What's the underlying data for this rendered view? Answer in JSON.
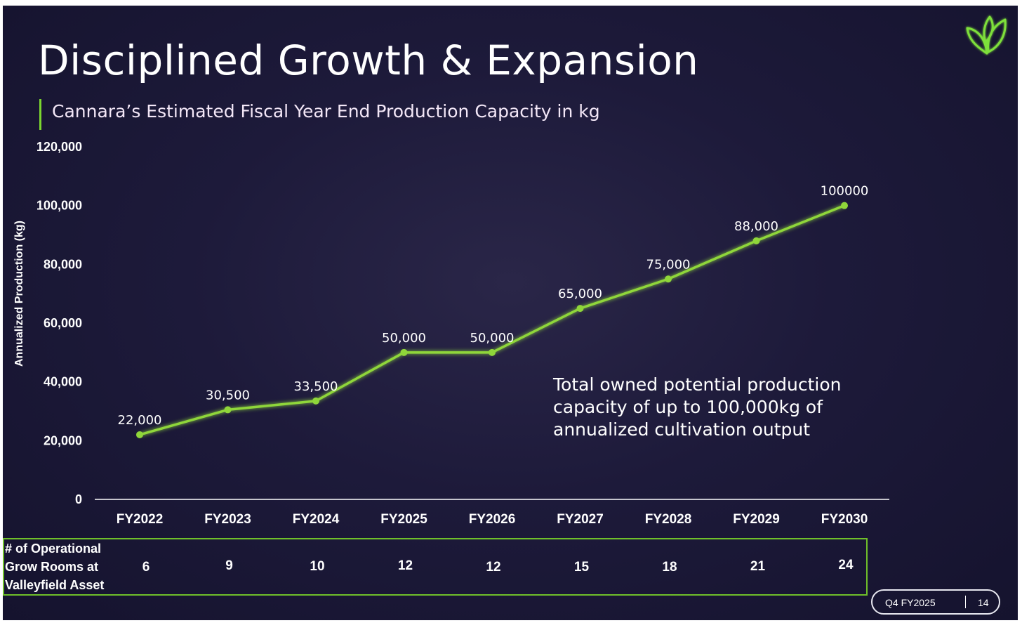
{
  "slide": {
    "title": "Disciplined Growth & Expansion",
    "subtitle": "Cannara’s Estimated Fiscal Year End Production Capacity in kg",
    "annotation": "Total owned potential production capacity of up to 100,000kg of annualized cultivation output",
    "rooms_label_lines": [
      "# of Operational",
      "Grow Rooms at",
      "Valleyfield Asset"
    ],
    "rooms": [
      6,
      9,
      10,
      12,
      12,
      15,
      18,
      21,
      24
    ],
    "footer": {
      "quarter": "Q4 FY2025",
      "page": "14"
    },
    "colors": {
      "accent": "#7bd62f",
      "line": "#8fd63a",
      "background": "#1d1a3a"
    }
  },
  "chart_data": {
    "type": "line",
    "title": "Cannara’s Estimated Fiscal Year End Production Capacity in kg",
    "xlabel": "",
    "ylabel": "Annualized Production (kg)",
    "ylim": [
      0,
      120000
    ],
    "y_ticks": [
      "0",
      "20,000",
      "40,000",
      "60,000",
      "80,000",
      "100,000",
      "120,000"
    ],
    "categories": [
      "FY2022",
      "FY2023",
      "FY2024",
      "FY2025",
      "FY2026",
      "FY2027",
      "FY2028",
      "FY2029",
      "FY2030"
    ],
    "values": [
      22000,
      30500,
      33500,
      50000,
      50000,
      65000,
      75000,
      88000,
      100000
    ],
    "data_labels": [
      "22,000",
      "30,500",
      "33,500",
      "50,000",
      "50,000",
      "65,000",
      "75,000",
      "88,000",
      "100000"
    ],
    "grid": false,
    "legend": "none"
  }
}
